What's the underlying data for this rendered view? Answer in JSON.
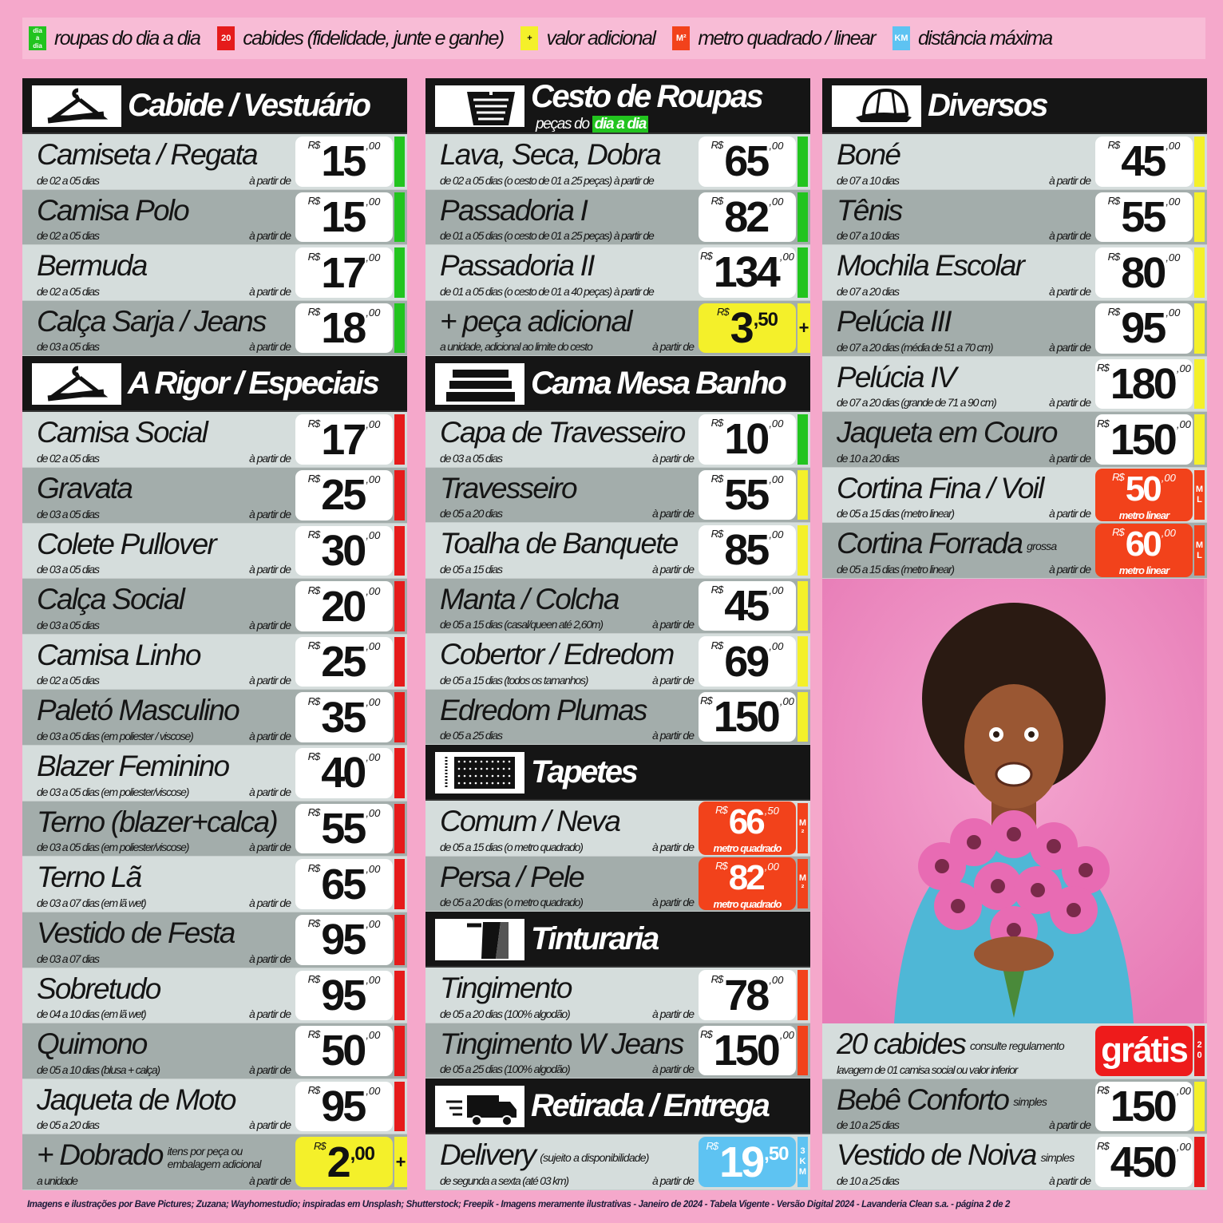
{
  "legend": [
    {
      "icon": "dia-a-dia-badge",
      "badge": "dia a dia",
      "color": "#22c41f",
      "label": "roupas do dia a dia"
    },
    {
      "icon": "20-cabides-badge",
      "badge": "20",
      "color": "#e51b1b",
      "label": "cabides (fidelidade, junte e ganhe)"
    },
    {
      "icon": "plus-badge",
      "badge": "+",
      "color": "#f4f02a",
      "label": "valor adicional"
    },
    {
      "icon": "m2-badge",
      "badge": "M²",
      "color": "#f2421b",
      "label": "metro quadrado / linear"
    },
    {
      "icon": "km-badge",
      "badge": "KM",
      "color": "#5ec3f2",
      "label": "distância máxima"
    }
  ],
  "colors": {
    "green": "#22c41f",
    "red": "#e51b1b",
    "yellow": "#f4f02a",
    "orange": "#f2421b",
    "blue": "#5ec3f2",
    "light_row": "#d5dddc",
    "dark_row": "#a3adab",
    "header": "#151515",
    "background": "#f5a8cb"
  },
  "columns": [
    {
      "sections": [
        {
          "title": "Cabide / Vestuário",
          "icon": "hanger-icon",
          "rows": [
            {
              "name": "Camiseta / Regata",
              "sub": "de 02 a 05 dias",
              "from": "à partir de",
              "currency": "R$",
              "price": "15",
              "cents": ",00",
              "strip": "green"
            },
            {
              "name": "Camisa Polo",
              "sub": "de 02 a 05 dias",
              "from": "à partir de",
              "currency": "R$",
              "price": "15",
              "cents": ",00",
              "strip": "green"
            },
            {
              "name": "Bermuda",
              "sub": "de 02 a 05 dias",
              "from": "à partir de",
              "currency": "R$",
              "price": "17",
              "cents": ",00",
              "strip": "green"
            },
            {
              "name": "Calça Sarja / Jeans",
              "sub": "de 03 a 05 dias",
              "from": "à partir de",
              "currency": "R$",
              "price": "18",
              "cents": ",00",
              "strip": "green"
            }
          ]
        },
        {
          "title": "A Rigor / Especiais",
          "icon": "hanger-icon",
          "rows": [
            {
              "name": "Camisa Social",
              "sub": "de 02 a 05 dias",
              "from": "à partir de",
              "currency": "R$",
              "price": "17",
              "cents": ",00",
              "strip": "red"
            },
            {
              "name": "Gravata",
              "sub": "de 03 a 05 dias",
              "from": "à partir de",
              "currency": "R$",
              "price": "25",
              "cents": ",00",
              "strip": "red"
            },
            {
              "name": "Colete Pullover",
              "sub": "de 03 a 05 dias",
              "from": "à partir de",
              "currency": "R$",
              "price": "30",
              "cents": ",00",
              "strip": "red"
            },
            {
              "name": "Calça Social",
              "sub": "de 03 a 05 dias",
              "from": "à partir de",
              "currency": "R$",
              "price": "20",
              "cents": ",00",
              "strip": "red"
            },
            {
              "name": "Camisa Linho",
              "sub": "de 02 a 05 dias",
              "from": "à partir de",
              "currency": "R$",
              "price": "25",
              "cents": ",00",
              "strip": "red"
            },
            {
              "name": "Paletó Masculino",
              "sub": "de 03 a 05 dias (em poliester / viscose)",
              "from": "à partir de",
              "currency": "R$",
              "price": "35",
              "cents": ",00",
              "strip": "red"
            },
            {
              "name": "Blazer Feminino",
              "sub": "de 03 a 05 dias (em poliester/viscose)",
              "from": "à partir de",
              "currency": "R$",
              "price": "40",
              "cents": ",00",
              "strip": "red"
            },
            {
              "name": "Terno (blazer+calca)",
              "sub": "de 03 a 05 dias (em poliester/viscose)",
              "from": "à partir de",
              "currency": "R$",
              "price": "55",
              "cents": ",00",
              "strip": "red"
            },
            {
              "name": "Terno Lã",
              "sub": "de 03 a 07 dias (em lã wet)",
              "from": "à partir de",
              "currency": "R$",
              "price": "65",
              "cents": ",00",
              "strip": "red"
            },
            {
              "name": "Vestido de Festa",
              "sub": "de 03 a 07 dias",
              "from": "à partir de",
              "currency": "R$",
              "price": "95",
              "cents": ",00",
              "strip": "red"
            },
            {
              "name": "Sobretudo",
              "sub": "de 04 a 10 dias (em lã wet)",
              "from": "à partir de",
              "currency": "R$",
              "price": "95",
              "cents": ",00",
              "strip": "red"
            },
            {
              "name": "Quimono",
              "sub": "de 05 a 10 dias (blusa + calça)",
              "from": "à partir de",
              "currency": "R$",
              "price": "50",
              "cents": ",00",
              "strip": "red"
            },
            {
              "name": "Jaqueta de Moto",
              "sub": "de 05 a 20 dias",
              "from": "à partir de",
              "currency": "R$",
              "price": "95",
              "cents": ",00",
              "strip": "red"
            },
            {
              "name": "+ Dobrado",
              "suffix": "itens por peça ou embalagem adicional",
              "sub": "a unidade",
              "from": "à partir de",
              "currency": "R$",
              "price": "2",
              "cents": ",00",
              "box": "yellow",
              "strip": "yellow",
              "strip_label": "+"
            }
          ]
        }
      ]
    },
    {
      "sections": [
        {
          "title": "Cesto de Roupas",
          "subtitle": "peças do",
          "subtitle_highlight": "dia a dia",
          "icon": "basket-icon",
          "rows": [
            {
              "name": "Lava, Seca, Dobra",
              "sub": "de 02 a 05 dias  (o cesto de 01 a 25 peças) à partir de",
              "currency": "R$",
              "price": "65",
              "cents": ",00",
              "strip": "green"
            },
            {
              "name": "Passadoria I",
              "sub": "de 01 a 05 dias (o cesto de 01 a 25 peças) à partir de",
              "currency": "R$",
              "price": "82",
              "cents": ",00",
              "strip": "green"
            },
            {
              "name": "Passadoria II",
              "sub": "de 01 a 05 dias  (o cesto de 01 a 40 peças) à partir de",
              "currency": "R$",
              "price": "134",
              "cents": ",00",
              "strip": "green"
            },
            {
              "name": "+ peça adicional",
              "sub": "a unidade, adicional ao limite do cesto",
              "from": "à partir de",
              "currency": "R$",
              "price": "3",
              "cents": ",50",
              "box": "yellow",
              "strip": "yellow",
              "strip_label": "+"
            }
          ]
        },
        {
          "title": "Cama Mesa Banho",
          "icon": "bed-linen-stack-icon",
          "rows": [
            {
              "name": "Capa de Travesseiro",
              "sub": "de 03 a 05 dias",
              "from": "à partir de",
              "currency": "R$",
              "price": "10",
              "cents": ",00",
              "strip": "green"
            },
            {
              "name": "Travesseiro",
              "sub": "de 05 a 20 dias",
              "from": "à partir de",
              "currency": "R$",
              "price": "55",
              "cents": ",00",
              "strip": "yellow"
            },
            {
              "name": "Toalha de Banquete",
              "sub": "de 05 a 15 dias",
              "from": "à partir de",
              "currency": "R$",
              "price": "85",
              "cents": ",00",
              "strip": "yellow"
            },
            {
              "name": "Manta / Colcha",
              "sub": "de 05 a 15 dias (casal/queen até 2,60m)",
              "from": "à partir de",
              "currency": "R$",
              "price": "45",
              "cents": ",00",
              "strip": "yellow"
            },
            {
              "name": "Cobertor / Edredom",
              "sub": "de 05 a 15 dias (todos os tamanhos)",
              "from": "à partir de",
              "currency": "R$",
              "price": "69",
              "cents": ",00",
              "strip": "yellow"
            },
            {
              "name": "Edredom Plumas",
              "sub": "de 05 a 25 dias",
              "from": "à partir de",
              "currency": "R$",
              "price": "150",
              "cents": ",00",
              "strip": "yellow"
            }
          ]
        },
        {
          "title": "Tapetes",
          "icon": "rug-icon",
          "rows": [
            {
              "name": "Comum / Neva",
              "sub": "de 05 a 15 dias (o metro quadrado)",
              "from": "à partir de",
              "currency": "R$",
              "price": "66",
              "cents": ",50",
              "box": "orange",
              "note": "metro quadrado",
              "strip": "orange",
              "strip_label": "M²"
            },
            {
              "name": "Persa / Pele",
              "sub": "de 05 a 20 dias (o metro quadrado)",
              "from": "à partir de",
              "currency": "R$",
              "price": "82",
              "cents": ",00",
              "box": "orange",
              "note": "metro quadrado",
              "strip": "orange",
              "strip_label": "M²"
            }
          ]
        },
        {
          "title": "Tinturaria",
          "icon": "dye-shirt-icon",
          "rows": [
            {
              "name": "Tingimento",
              "sub": "de 05 a 20 dias (100% algodão)",
              "from": "à partir de",
              "currency": "R$",
              "price": "78",
              "cents": ",00",
              "strip": "orange"
            },
            {
              "name": "Tingimento W Jeans",
              "sub": "de 05 a 25 dias (100% algodão)",
              "from": "à partir de",
              "currency": "R$",
              "price": "150",
              "cents": ",00",
              "strip": "orange"
            }
          ]
        },
        {
          "title": "Retirada / Entrega",
          "icon": "delivery-truck-icon",
          "rows": [
            {
              "name": "Delivery",
              "suffix": "(sujeito a disponibilidade)",
              "sub": "de segunda a sexta (até 03 km)",
              "from": "à partir de",
              "currency": "R$",
              "price": "19",
              "cents": ",50",
              "box": "blue",
              "strip": "blue",
              "strip_label": "3 KM"
            }
          ]
        }
      ]
    },
    {
      "sections": [
        {
          "title": "Diversos",
          "icon": "cap-icon",
          "rows": [
            {
              "name": "Boné",
              "sub": "de 07 a 10 dias",
              "from": "à partir de",
              "currency": "R$",
              "price": "45",
              "cents": ",00",
              "strip": "yellow"
            },
            {
              "name": "Tênis",
              "sub": "de 07 a 10 dias",
              "from": "à partir de",
              "currency": "R$",
              "price": "55",
              "cents": ",00",
              "strip": "yellow"
            },
            {
              "name": "Mochila Escolar",
              "sub": "de 07 a 20 dias",
              "from": "à partir de",
              "currency": "R$",
              "price": "80",
              "cents": ",00",
              "strip": "yellow"
            },
            {
              "name": "Pelúcia III",
              "sub": "de 07 a 20 dias (média de 51 a 70 cm)",
              "from": "à partir de",
              "currency": "R$",
              "price": "95",
              "cents": ",00",
              "strip": "yellow"
            },
            {
              "name": "Pelúcia IV",
              "sub": "de 07 a 20 dias (grande de 71 a 90 cm)",
              "from": "à partir de",
              "currency": "R$",
              "price": "180",
              "cents": ",00",
              "strip": "yellow"
            },
            {
              "name": "Jaqueta em Couro",
              "sub": "de 10 a 20 dias",
              "from": "à partir de",
              "currency": "R$",
              "price": "150",
              "cents": ",00",
              "strip": "yellow"
            },
            {
              "name": "Cortina Fina / Voil",
              "sub": "de 05 a 15 dias (metro linear)",
              "from": "à partir de",
              "currency": "R$",
              "price": "50",
              "cents": ",00",
              "box": "orange",
              "note": "metro linear",
              "strip": "orange",
              "strip_label": "M L"
            },
            {
              "name": "Cortina Forrada",
              "suffix": "grossa",
              "sub": "de 05 a 15 dias (metro linear)",
              "from": "à partir de",
              "currency": "R$",
              "price": "60",
              "cents": ",00",
              "box": "orange",
              "note": "metro linear",
              "strip": "orange",
              "strip_label": "M L"
            }
          ]
        },
        {
          "photo": "woman-with-flowers"
        },
        {
          "rows": [
            {
              "name": "20 cabides",
              "suffix": "consulte regulamento",
              "sub": "lavagem de 01 camisa social ou valor inferior",
              "price": "grátis",
              "box": "gratis",
              "strip": "red",
              "strip_label": "2 0"
            },
            {
              "name": "Bebê Conforto",
              "suffix": "simples",
              "sub": "de 10 a 25 dias",
              "from": "à partir de",
              "currency": "R$",
              "price": "150",
              "cents": ",00",
              "strip": "yellow"
            },
            {
              "name": "Vestido de Noiva",
              "suffix": "simples",
              "sub": "de 10 a 25 dias",
              "from": "à partir de",
              "currency": "R$",
              "price": "450",
              "cents": ",00",
              "strip": "red"
            }
          ]
        }
      ]
    }
  ],
  "footer": "Imagens e ilustrações por Bave Pictures; Zuzana; Wayhomestudio; inspiradas em Unsplash; Shutterstock; Freepik  - Imagens meramente ilustrativas - Janeiro de 2024 - Tabela Vigente - Versão Digital 2024 - Lavanderia Clean s.a. - página 2 de 2"
}
